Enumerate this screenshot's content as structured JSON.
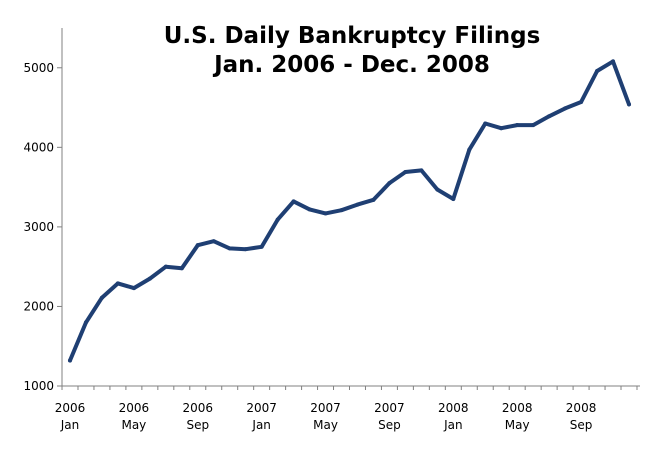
{
  "chart_data": {
    "type": "line",
    "title_lines": [
      "U.S. Daily Bankruptcy Filings",
      "Jan. 2006 - Dec. 2008"
    ],
    "xlabel": "",
    "ylabel": "",
    "ylim": [
      1000,
      5500
    ],
    "yticks": [
      1000,
      2000,
      3000,
      4000,
      5000
    ],
    "grid": false,
    "legend": "none",
    "x": [
      "2006-01",
      "2006-02",
      "2006-03",
      "2006-04",
      "2006-05",
      "2006-06",
      "2006-07",
      "2006-08",
      "2006-09",
      "2006-10",
      "2006-11",
      "2006-12",
      "2007-01",
      "2007-02",
      "2007-03",
      "2007-04",
      "2007-05",
      "2007-06",
      "2007-07",
      "2007-08",
      "2007-09",
      "2007-10",
      "2007-11",
      "2007-12",
      "2008-01",
      "2008-02",
      "2008-03",
      "2008-04",
      "2008-05",
      "2008-06",
      "2008-07",
      "2008-08",
      "2008-09",
      "2008-10",
      "2008-11",
      "2008-12"
    ],
    "xtick_labels": [
      {
        "index": 0,
        "year": "2006",
        "month": "Jan"
      },
      {
        "index": 4,
        "year": "2006",
        "month": "May"
      },
      {
        "index": 8,
        "year": "2006",
        "month": "Sep"
      },
      {
        "index": 12,
        "year": "2007",
        "month": "Jan"
      },
      {
        "index": 16,
        "year": "2007",
        "month": "May"
      },
      {
        "index": 20,
        "year": "2007",
        "month": "Sep"
      },
      {
        "index": 24,
        "year": "2008",
        "month": "Jan"
      },
      {
        "index": 28,
        "year": "2008",
        "month": "May"
      },
      {
        "index": 32,
        "year": "2008",
        "month": "Sep"
      }
    ],
    "series": [
      {
        "color": "#1f3f73",
        "values": [
          1320,
          1800,
          2110,
          2290,
          2230,
          2350,
          2500,
          2480,
          2770,
          2820,
          2730,
          2720,
          2750,
          3090,
          3320,
          3220,
          3170,
          3210,
          3280,
          3340,
          3550,
          3690,
          3710,
          3470,
          3350,
          3970,
          4300,
          4240,
          4280,
          4280,
          4390,
          4490,
          4570,
          4960,
          5080,
          4540
        ]
      }
    ]
  }
}
